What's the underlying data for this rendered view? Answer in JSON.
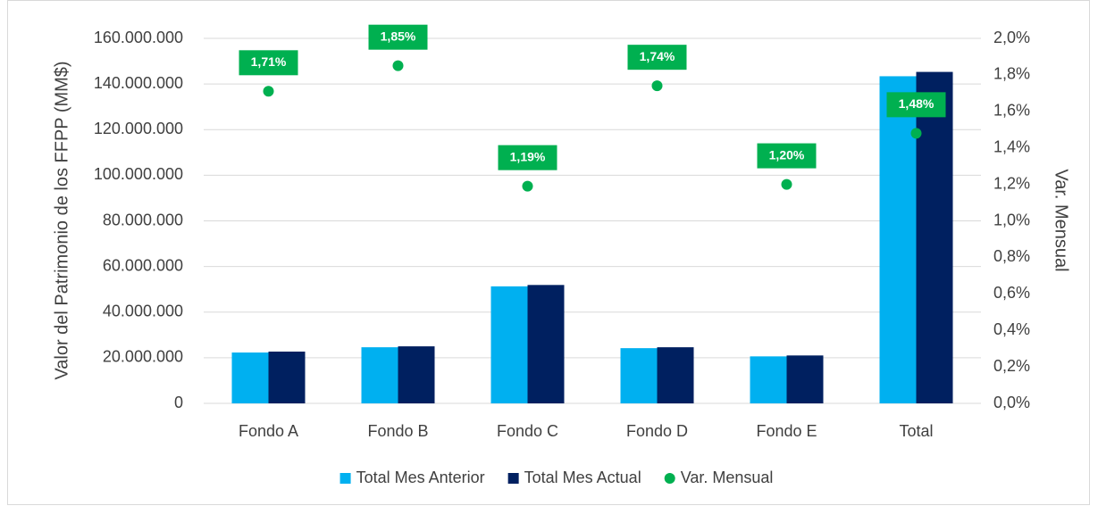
{
  "chart_data": {
    "type": "bar",
    "y_label": "Valor del Patrimonio de los FFPP (MM$)",
    "y2_label": "Var. Mensual",
    "categories": [
      "Fondo A",
      "Fondo B",
      "Fondo C",
      "Fondo D",
      "Fondo E",
      "Total"
    ],
    "series": [
      {
        "name": "Total Mes Anterior",
        "type": "bar",
        "color": "#00b0f0",
        "values": [
          22300000,
          24600000,
          51300000,
          24200000,
          20600000,
          143400000
        ]
      },
      {
        "name": "Total Mes Actual",
        "type": "bar",
        "color": "#002060",
        "values": [
          22700000,
          25000000,
          51900000,
          24600000,
          21000000,
          145300000
        ]
      },
      {
        "name": "Var. Mensual",
        "type": "scatter",
        "color": "#00b050",
        "axis": "y2",
        "values": [
          1.71,
          1.85,
          1.19,
          1.74,
          1.2,
          1.48
        ],
        "value_labels": [
          "1,71%",
          "1,85%",
          "1,19%",
          "1,74%",
          "1,20%",
          "1,48%"
        ]
      }
    ],
    "ylim": [
      0,
      160000000
    ],
    "yticks": [
      0,
      {
        "value": 20000000,
        "label": "20.000.000"
      },
      {
        "value": 40000000,
        "label": "40.000.000"
      },
      {
        "value": 60000000,
        "label": "60.000.000"
      },
      {
        "value": 80000000,
        "label": "80.000.000"
      },
      {
        "value": 100000000,
        "label": "100.000.000"
      },
      {
        "value": 120000000,
        "label": "120.000.000"
      },
      {
        "value": 140000000,
        "label": "140.000.000"
      },
      {
        "value": 160000000,
        "label": "160.000.000"
      }
    ],
    "y2lim": [
      0,
      2.0
    ],
    "y2ticks": [
      {
        "value": 0.0,
        "label": "0,0%"
      },
      {
        "value": 0.2,
        "label": "0,2%"
      },
      {
        "value": 0.4,
        "label": "0,4%"
      },
      {
        "value": 0.6,
        "label": "0,6%"
      },
      {
        "value": 0.8,
        "label": "0,8%"
      },
      {
        "value": 1.0,
        "label": "1,0%"
      },
      {
        "value": 1.2,
        "label": "1,2%"
      },
      {
        "value": 1.4,
        "label": "1,4%"
      },
      {
        "value": 1.6,
        "label": "1,6%"
      },
      {
        "value": 1.8,
        "label": "1,8%"
      },
      {
        "value": 2.0,
        "label": "2,0%"
      }
    ],
    "grid": true,
    "legend": "bottom"
  }
}
